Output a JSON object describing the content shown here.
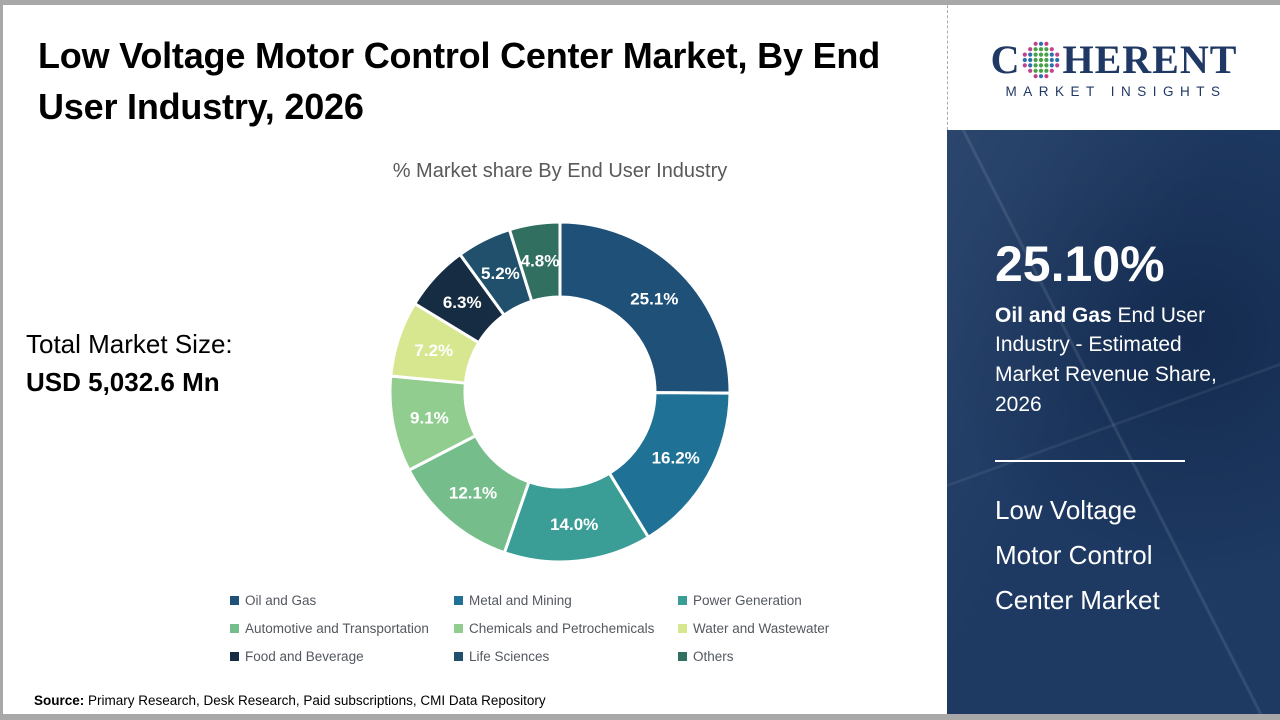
{
  "page": {
    "title": "Low Voltage Motor Control Center Market, By End User Industry, 2026"
  },
  "logo": {
    "word_start": "C",
    "word_end": "HERENT",
    "tagline": "MARKET INSIGHTS",
    "navy": "#1F3864",
    "dot_colors": {
      "green": "#46A247",
      "blue": "#2B6FAD",
      "magenta": "#C2418C"
    }
  },
  "left_panel": {
    "total_label": "Total Market Size:",
    "total_value": "USD 5,032.6 Mn"
  },
  "chart_data": {
    "type": "pie",
    "donut": true,
    "title": "% Market share By End User Industry",
    "categories": [
      "Oil and Gas",
      "Metal and Mining",
      "Power Generation",
      "Automotive and Transportation",
      "Chemicals and Petrochemicals",
      "Water and Wastewater",
      "Food and Beverage",
      "Life Sciences",
      "Others"
    ],
    "values": [
      25.1,
      16.2,
      14.0,
      12.1,
      9.1,
      7.2,
      6.3,
      5.2,
      4.8
    ],
    "labels": [
      "25.1%",
      "16.2%",
      "14.0%",
      "12.1%",
      "9.1%",
      "7.2%",
      "6.3%",
      "5.2%",
      "4.8%"
    ],
    "colors": [
      "#1F5078",
      "#1F7296",
      "#3B9E96",
      "#75BE8C",
      "#92CD90",
      "#D6E78F",
      "#152C42",
      "#20506B",
      "#316F61"
    ],
    "start_angle_deg": 0,
    "direction": "clockwise",
    "legend_position": "bottom",
    "slice_label_color": "#FFFFFF"
  },
  "sidebar": {
    "background": "#1E3A63",
    "highlight_value": "25.10%",
    "highlight_bold": "Oil and Gas",
    "highlight_rest": " End User Industry - Estimated Market Revenue Share, 2026",
    "market_name": "Low Voltage Motor Control Center Market"
  },
  "footer": {
    "source_label": "Source:",
    "source_text": " Primary Research, Desk Research, Paid subscriptions, CMI Data Repository"
  }
}
